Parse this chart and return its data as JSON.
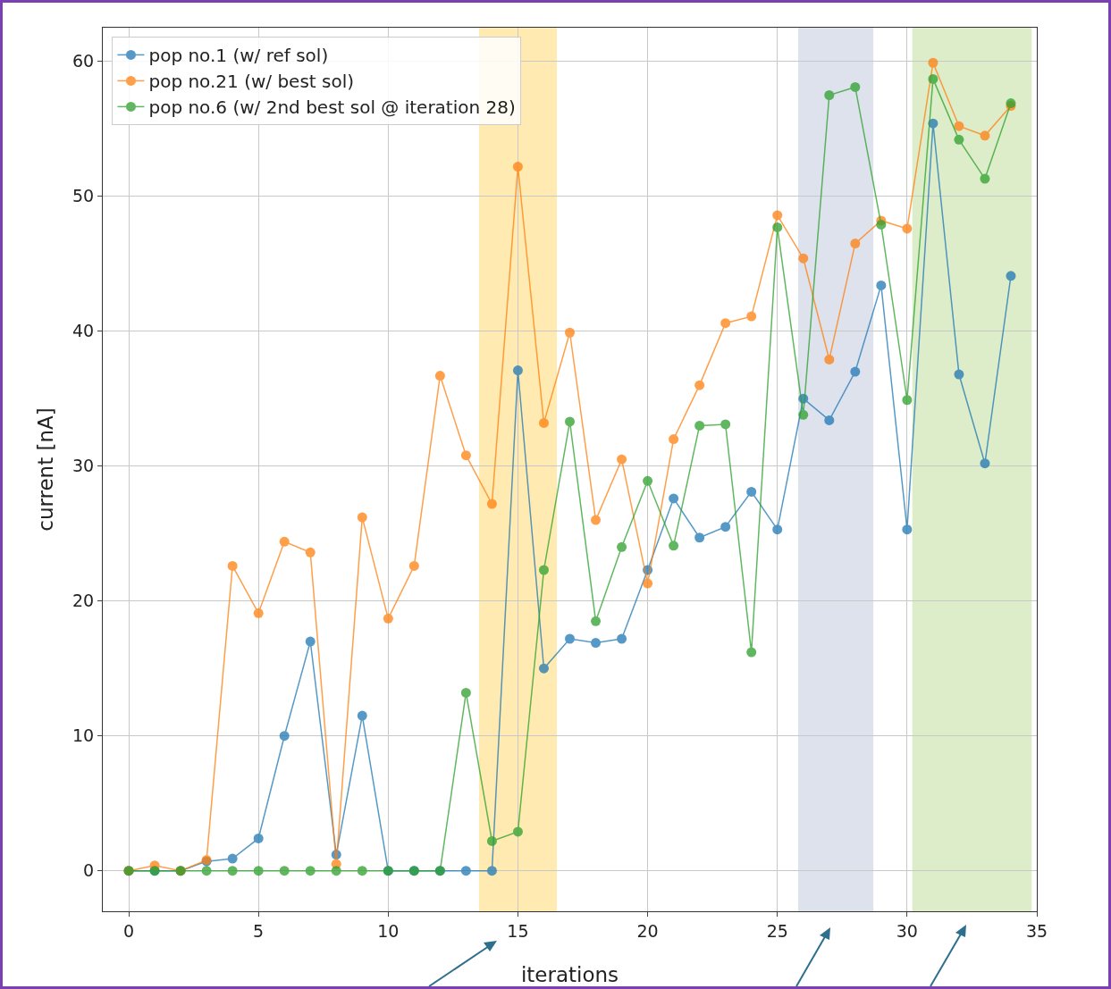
{
  "chart_data": {
    "type": "line",
    "xlabel": "iterations",
    "ylabel": "current [nA]",
    "x": [
      0,
      1,
      2,
      3,
      4,
      5,
      6,
      7,
      8,
      9,
      10,
      11,
      12,
      13,
      14,
      15,
      16,
      17,
      18,
      19,
      20,
      21,
      22,
      23,
      24,
      25,
      26,
      27,
      28,
      29,
      30,
      31,
      32,
      33,
      34
    ],
    "series": [
      {
        "name": "pop no.1 (w/ ref sol)",
        "color": "#1f77b4",
        "values": [
          0,
          0,
          0,
          0.7,
          0.9,
          2.4,
          10,
          17,
          1.2,
          11.5,
          0,
          0,
          0,
          0,
          0,
          37.1,
          15,
          17.2,
          16.9,
          17.2,
          22.3,
          27.6,
          24.7,
          25.5,
          28.1,
          25.3,
          35,
          33.4,
          37,
          43.4,
          25.3,
          55.4,
          36.8,
          30.2,
          44.1
        ]
      },
      {
        "name": "pop no.21 (w/ best sol)",
        "color": "#ff7f0e",
        "values": [
          0,
          0.4,
          0,
          0.8,
          22.6,
          19.1,
          24.4,
          23.6,
          0.5,
          26.2,
          18.7,
          22.6,
          36.7,
          30.8,
          27.2,
          52.2,
          33.2,
          39.9,
          26,
          30.5,
          21.3,
          32,
          36,
          40.6,
          41.1,
          48.6,
          45.4,
          37.9,
          46.5,
          48.2,
          47.6,
          59.9,
          55.2,
          54.5,
          56.7
        ]
      },
      {
        "name": "pop no.6 (w/ 2nd best sol @ iteration 28)",
        "color": "#2ca02c",
        "values": [
          0,
          0,
          0,
          0,
          0,
          0,
          0,
          0,
          0,
          0,
          0,
          0,
          0,
          13.2,
          2.2,
          2.9,
          22.3,
          33.3,
          18.5,
          24,
          28.9,
          24.1,
          33,
          33.1,
          16.2,
          47.7,
          33.8,
          57.5,
          58.1,
          47.9,
          34.9,
          58.7,
          54.2,
          51.3,
          56.9
        ]
      }
    ],
    "xlim": [
      -1,
      35
    ],
    "xticks": [
      0,
      5,
      10,
      15,
      20,
      25,
      30,
      35
    ],
    "ylim": [
      -3,
      62.5
    ],
    "yticks": [
      0,
      10,
      20,
      30,
      40,
      50,
      60
    ],
    "bands": [
      {
        "axis": "x",
        "from": 13.5,
        "to": 16.5,
        "color": "#ffe9a8"
      },
      {
        "axis": "x",
        "from": 25.8,
        "to": 28.7,
        "color": "#d9dfea"
      },
      {
        "axis": "x",
        "from": 30.2,
        "to": 34.8,
        "color": "#d9ebc4"
      }
    ],
    "grid": true,
    "legend": "top left",
    "marker": "circle",
    "line_style": "solid"
  }
}
